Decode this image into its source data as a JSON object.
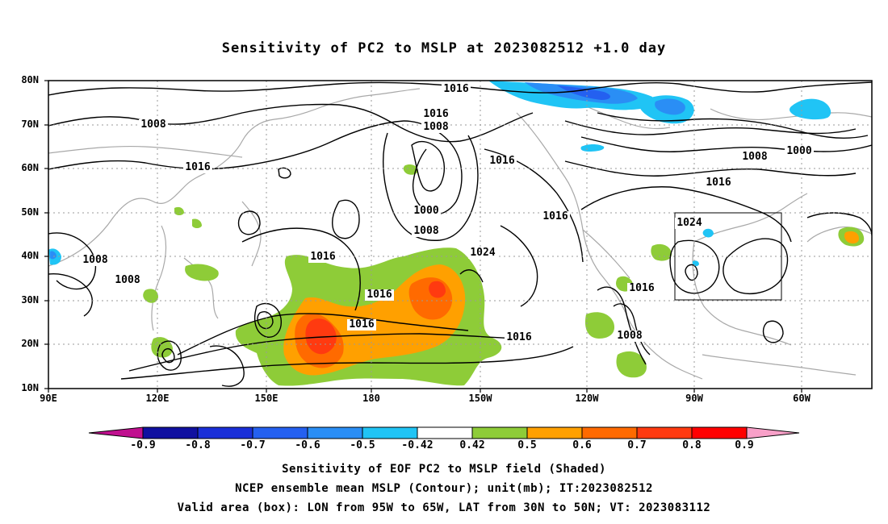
{
  "title": "Sensitivity of PC2 to MSLP at 2023082512 +1.0 day",
  "lat_labels": [
    "80N",
    "70N",
    "60N",
    "50N",
    "40N",
    "30N",
    "20N",
    "10N"
  ],
  "lon_labels": [
    "90E",
    "120E",
    "150E",
    "180",
    "150W",
    "120W",
    "90W",
    "60W"
  ],
  "contour_labels": [
    "1016",
    "1016",
    "1008",
    "1016",
    "1008",
    "1016",
    "1016",
    "1000",
    "1008",
    "1016",
    "1024",
    "1016",
    "1016",
    "1016",
    "1008",
    "1008",
    "1008",
    "1016",
    "1008",
    "1024",
    "1016",
    "1000"
  ],
  "colorbar": {
    "labels": [
      "-0.9",
      "-0.8",
      "-0.7",
      "-0.6",
      "-0.5",
      "-0.42",
      "0.42",
      "0.5",
      "0.6",
      "0.7",
      "0.8",
      "0.9"
    ],
    "colors": [
      "#1010a0",
      "#1a2fd8",
      "#2460f0",
      "#2a8ef5",
      "#20c4f5",
      "#ffffff",
      "#8ecc38",
      "#ffa000",
      "#ff6a00",
      "#ff3a10",
      "#ff0000"
    ],
    "low_extend_color": "#c0108f",
    "high_extend_color": "#f8a0c8"
  },
  "valid_box": {
    "lon_min": -95,
    "lon_max": -65,
    "lat_min": 30,
    "lat_max": 50
  },
  "captions": [
    "Sensitivity of EOF PC2 to MSLP field (Shaded)",
    "NCEP ensemble mean MSLP (Contour); unit(mb); IT:2023082512",
    "Valid area (box): LON from 95W to 65W, LAT from 30N to 50N; VT: 2023083112"
  ]
}
